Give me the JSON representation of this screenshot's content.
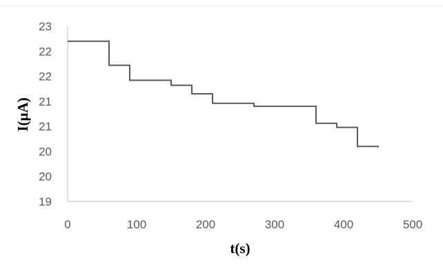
{
  "chart_data": {
    "type": "line",
    "title": "",
    "xlabel": "t(s)",
    "ylabel": "I(μA)",
    "x_ticks": [
      "0",
      "100",
      "200",
      "300",
      "400",
      "500"
    ],
    "x_tick_values": [
      0,
      100,
      200,
      300,
      400,
      500
    ],
    "y_ticks": [
      "19",
      "20",
      "20",
      "21",
      "21",
      "22",
      "22",
      "23"
    ],
    "y_tick_values": [
      19,
      19.5,
      20,
      20.5,
      21,
      21.5,
      22,
      22.5
    ],
    "xlim": [
      0,
      500
    ],
    "ylim": [
      19,
      22.5
    ],
    "grid": false,
    "line_color": "#595959",
    "axis_color": "#bfbfbf",
    "series": [
      {
        "step": "post",
        "x": [
          0,
          60,
          90,
          150,
          180,
          210,
          270,
          360,
          390,
          420,
          450
        ],
        "y": [
          22.2,
          21.72,
          21.42,
          21.32,
          21.15,
          20.96,
          20.9,
          20.56,
          20.48,
          20.1,
          20.08
        ]
      }
    ]
  }
}
